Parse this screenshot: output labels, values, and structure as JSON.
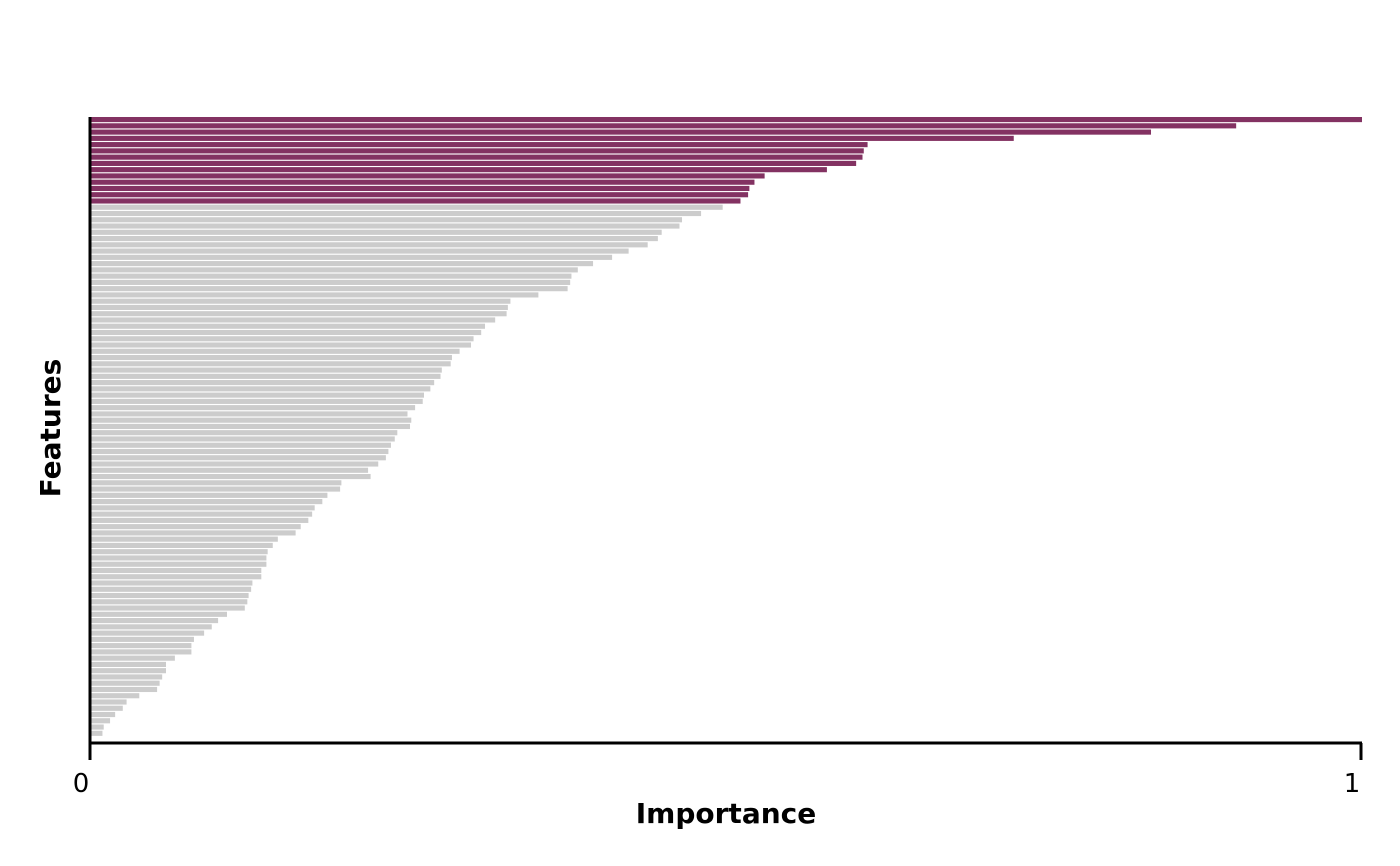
{
  "chart_data": {
    "type": "bar",
    "orientation": "horizontal",
    "xlabel": "Importance",
    "ylabel": "Features",
    "xlim": [
      0,
      1
    ],
    "x_ticks": [
      "0",
      "1"
    ],
    "grid": false,
    "legend": "none",
    "colors": {
      "highlight": "#833262",
      "other": "#cccccc",
      "axis": "#000000"
    },
    "highlighted_count": 14,
    "values": [
      1.0,
      0.901,
      0.834,
      0.726,
      0.611,
      0.608,
      0.607,
      0.602,
      0.579,
      0.53,
      0.522,
      0.518,
      0.517,
      0.511,
      0.497,
      0.48,
      0.465,
      0.463,
      0.449,
      0.446,
      0.438,
      0.423,
      0.41,
      0.395,
      0.383,
      0.378,
      0.377,
      0.375,
      0.352,
      0.33,
      0.328,
      0.327,
      0.318,
      0.31,
      0.307,
      0.301,
      0.299,
      0.29,
      0.284,
      0.283,
      0.276,
      0.275,
      0.27,
      0.267,
      0.262,
      0.261,
      0.255,
      0.249,
      0.252,
      0.251,
      0.241,
      0.239,
      0.236,
      0.234,
      0.232,
      0.226,
      0.218,
      0.22,
      0.197,
      0.196,
      0.186,
      0.182,
      0.176,
      0.174,
      0.171,
      0.165,
      0.161,
      0.147,
      0.143,
      0.139,
      0.138,
      0.138,
      0.134,
      0.134,
      0.127,
      0.126,
      0.124,
      0.123,
      0.121,
      0.107,
      0.1,
      0.095,
      0.089,
      0.081,
      0.079,
      0.079,
      0.066,
      0.059,
      0.059,
      0.056,
      0.054,
      0.052,
      0.038,
      0.028,
      0.025,
      0.019,
      0.015,
      0.01,
      0.009
    ]
  }
}
